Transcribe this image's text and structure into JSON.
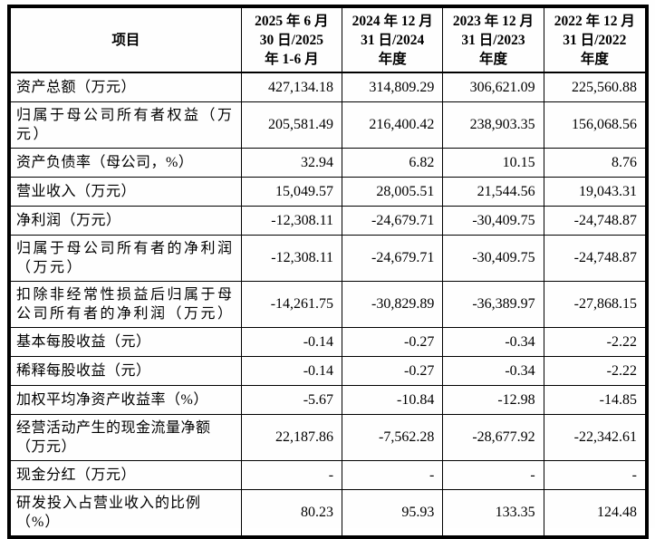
{
  "table": {
    "header": {
      "item_label": "项目",
      "periods": [
        "2025 年 6 月\n30 日/2025\n年 1-6 月",
        "2024 年 12 月\n31 日/2024\n年度",
        "2023 年 12 月\n31 日/2023\n年度",
        "2022 年 12 月\n31 日/2022\n年度"
      ]
    },
    "rows": [
      {
        "label": "资产总额（万元）",
        "values": [
          "427,134.18",
          "314,809.29",
          "306,621.09",
          "225,560.88"
        ]
      },
      {
        "label": "归属于母公司所有者权益（万\n元）",
        "values": [
          "205,581.49",
          "216,400.42",
          "238,903.35",
          "156,068.56"
        ]
      },
      {
        "label": "资产负债率（母公司，%）",
        "values": [
          "32.94",
          "6.82",
          "10.15",
          "8.76"
        ]
      },
      {
        "label": "营业收入（万元）",
        "values": [
          "15,049.57",
          "28,005.51",
          "21,544.56",
          "19,043.31"
        ]
      },
      {
        "label": "净利润（万元）",
        "values": [
          "-12,308.11",
          "-24,679.71",
          "-30,409.75",
          "-24,748.87"
        ]
      },
      {
        "label": "归属于母公司所有者的净利润\n（万元）",
        "values": [
          "-12,308.11",
          "-24,679.71",
          "-30,409.75",
          "-24,748.87"
        ]
      },
      {
        "label": "扣除非经常性损益后归属于母\n公司所有者的净利润（万元）",
        "values": [
          "-14,261.75",
          "-30,829.89",
          "-36,389.97",
          "-27,868.15"
        ]
      },
      {
        "label": "基本每股收益（元）",
        "values": [
          "-0.14",
          "-0.27",
          "-0.34",
          "-2.22"
        ]
      },
      {
        "label": "稀释每股收益（元）",
        "values": [
          "-0.14",
          "-0.27",
          "-0.34",
          "-2.22"
        ]
      },
      {
        "label": "加权平均净资产收益率（%）",
        "values": [
          "-5.67",
          "-10.84",
          "-12.98",
          "-14.85"
        ]
      },
      {
        "label": "经营活动产生的现金流量净额\n（万元）",
        "values": [
          "22,187.86",
          "-7,562.28",
          "-28,677.92",
          "-22,342.61"
        ]
      },
      {
        "label": "现金分红（万元）",
        "values": [
          "-",
          "-",
          "-",
          "-"
        ]
      },
      {
        "label": "研发投入占营业收入的比例\n（%）",
        "values": [
          "80.23",
          "95.93",
          "133.35",
          "124.48"
        ]
      }
    ]
  },
  "colors": {
    "border": "#000000",
    "text": "#000000",
    "background": "#ffffff"
  }
}
